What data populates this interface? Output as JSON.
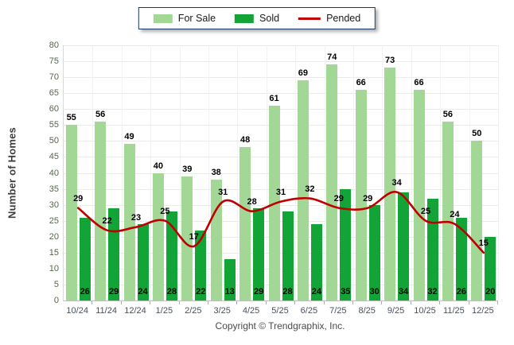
{
  "footer": "Copyright © Trendgraphix, Inc.",
  "chart_data": {
    "type": "bar",
    "title": "",
    "xlabel": "",
    "ylabel": "Number of Homes",
    "ylim": [
      0,
      80
    ],
    "ytick_step": 5,
    "grid": true,
    "legend_position": "top",
    "categories": [
      "10/24",
      "11/24",
      "12/24",
      "1/25",
      "2/25",
      "3/25",
      "4/25",
      "5/25",
      "6/25",
      "7/25",
      "8/25",
      "9/25",
      "10/25",
      "11/25",
      "12/25"
    ],
    "series": [
      {
        "name": "For Sale",
        "type": "bar",
        "color": "#a3d795",
        "values": [
          55,
          56,
          49,
          40,
          39,
          38,
          48,
          61,
          69,
          74,
          66,
          73,
          66,
          56,
          50
        ]
      },
      {
        "name": "Sold",
        "type": "bar",
        "color": "#12a437",
        "values": [
          26,
          29,
          24,
          28,
          22,
          13,
          29,
          28,
          24,
          35,
          30,
          34,
          32,
          26,
          20
        ]
      },
      {
        "name": "Pended",
        "type": "line",
        "color": "#c00000",
        "values": [
          29,
          22,
          23,
          25,
          17,
          31,
          28,
          31,
          32,
          29,
          29,
          34,
          25,
          24,
          15
        ]
      }
    ]
  }
}
